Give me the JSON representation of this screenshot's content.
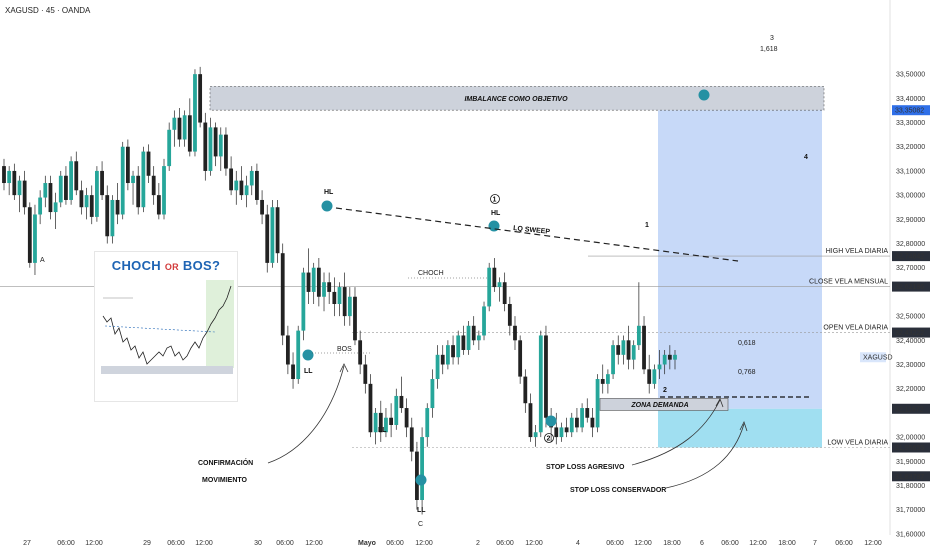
{
  "header": {
    "symbol": "XAGUSD · 45 · OANDA"
  },
  "colors": {
    "up": "#26a69a",
    "down": "#222222",
    "blue_zone": "#bdd2f7",
    "cyan_zone": "#8fd9ee",
    "marker": "#2591a3",
    "annotation_blue": "#1ea0c8"
  },
  "chart_data": {
    "type": "candlestick",
    "symbol": "XAGUSD",
    "timeframe": "45",
    "source": "OANDA",
    "ylim": [
      31.55,
      33.55
    ],
    "y_ticks": [
      "33,50000",
      "33,40000",
      "33,30000",
      "33,20000",
      "33,10000",
      "33,00000",
      "32,90000",
      "32,80000",
      "32,70000",
      "32,50000",
      "32,40000",
      "32,30000",
      "32,20000",
      "32,00000",
      "31,90000",
      "31,80000",
      "31,70000",
      "31,60000"
    ],
    "x_ticks": [
      "27",
      "06:00",
      "12:00",
      "29",
      "06:00",
      "12:00",
      "30",
      "06:00",
      "12:00",
      "Mayo",
      "06:00",
      "12:00",
      "2",
      "06:00",
      "12:00",
      "4",
      "06:00",
      "12:00",
      "18:00",
      "6",
      "06:00",
      "12:00",
      "18:00",
      "7",
      "06:00",
      "12:00"
    ],
    "candles": [
      [
        33.12,
        33.15,
        33.02,
        33.05
      ],
      [
        33.05,
        33.12,
        33.0,
        33.1
      ],
      [
        33.1,
        33.13,
        32.98,
        33.0
      ],
      [
        33.0,
        33.08,
        32.93,
        33.06
      ],
      [
        33.06,
        33.1,
        32.92,
        32.95
      ],
      [
        32.95,
        32.97,
        32.7,
        32.72
      ],
      [
        32.72,
        32.96,
        32.67,
        32.92
      ],
      [
        32.92,
        33.02,
        32.88,
        32.99
      ],
      [
        32.99,
        33.08,
        32.95,
        33.05
      ],
      [
        33.05,
        33.08,
        32.9,
        32.93
      ],
      [
        32.93,
        33.01,
        32.86,
        32.97
      ],
      [
        32.97,
        33.1,
        32.95,
        33.08
      ],
      [
        33.08,
        33.12,
        32.96,
        32.98
      ],
      [
        32.98,
        33.16,
        32.96,
        33.14
      ],
      [
        33.14,
        33.18,
        33.0,
        33.02
      ],
      [
        33.02,
        33.06,
        32.92,
        32.95
      ],
      [
        32.95,
        33.03,
        32.9,
        33.0
      ],
      [
        33.0,
        33.04,
        32.88,
        32.91
      ],
      [
        32.91,
        33.12,
        32.89,
        33.1
      ],
      [
        33.1,
        33.14,
        32.98,
        33.0
      ],
      [
        33.0,
        33.04,
        32.8,
        32.83
      ],
      [
        32.83,
        33.0,
        32.8,
        32.98
      ],
      [
        32.98,
        33.05,
        32.88,
        32.92
      ],
      [
        32.92,
        33.22,
        32.9,
        33.2
      ],
      [
        33.2,
        33.23,
        33.02,
        33.05
      ],
      [
        33.05,
        33.1,
        32.96,
        33.08
      ],
      [
        33.08,
        33.12,
        32.92,
        32.95
      ],
      [
        32.95,
        33.2,
        32.93,
        33.18
      ],
      [
        33.18,
        33.21,
        33.05,
        33.08
      ],
      [
        33.08,
        33.12,
        32.96,
        33.0
      ],
      [
        33.0,
        33.05,
        32.9,
        32.92
      ],
      [
        32.92,
        33.15,
        32.9,
        33.12
      ],
      [
        33.12,
        33.3,
        33.1,
        33.27
      ],
      [
        33.27,
        33.35,
        33.2,
        33.32
      ],
      [
        33.32,
        33.36,
        33.2,
        33.23
      ],
      [
        33.23,
        33.35,
        33.2,
        33.33
      ],
      [
        33.33,
        33.4,
        33.16,
        33.18
      ],
      [
        33.18,
        33.52,
        33.16,
        33.5
      ],
      [
        33.5,
        33.53,
        33.28,
        33.3
      ],
      [
        33.3,
        33.34,
        33.06,
        33.1
      ],
      [
        33.1,
        33.32,
        33.08,
        33.28
      ],
      [
        33.28,
        33.3,
        33.12,
        33.16
      ],
      [
        33.16,
        33.28,
        33.1,
        33.25
      ],
      [
        33.25,
        33.28,
        33.08,
        33.11
      ],
      [
        33.11,
        33.16,
        33.0,
        33.02
      ],
      [
        33.02,
        33.1,
        32.96,
        33.06
      ],
      [
        33.06,
        33.12,
        32.98,
        33.0
      ],
      [
        33.0,
        33.08,
        32.95,
        33.04
      ],
      [
        33.04,
        33.12,
        33.0,
        33.1
      ],
      [
        33.1,
        33.13,
        32.96,
        32.98
      ],
      [
        32.98,
        33.02,
        32.88,
        32.92
      ],
      [
        32.92,
        32.96,
        32.68,
        32.72
      ],
      [
        32.72,
        32.98,
        32.7,
        32.95
      ],
      [
        32.95,
        32.98,
        32.72,
        32.76
      ],
      [
        32.76,
        32.8,
        32.38,
        32.42
      ],
      [
        32.42,
        32.46,
        32.26,
        32.3
      ],
      [
        32.3,
        32.35,
        32.2,
        32.24
      ],
      [
        32.24,
        32.46,
        32.22,
        32.44
      ],
      [
        32.44,
        32.7,
        32.4,
        32.68
      ],
      [
        32.68,
        32.78,
        32.55,
        32.6
      ],
      [
        32.6,
        32.72,
        32.55,
        32.7
      ],
      [
        32.7,
        32.74,
        32.54,
        32.58
      ],
      [
        32.58,
        32.68,
        32.52,
        32.64
      ],
      [
        32.64,
        32.68,
        32.55,
        32.6
      ],
      [
        32.6,
        32.66,
        32.5,
        32.55
      ],
      [
        32.55,
        32.64,
        32.5,
        32.62
      ],
      [
        32.62,
        32.68,
        32.46,
        32.5
      ],
      [
        32.5,
        32.62,
        32.46,
        32.58
      ],
      [
        32.58,
        32.62,
        32.38,
        32.4
      ],
      [
        32.4,
        32.44,
        32.26,
        32.3
      ],
      [
        32.3,
        32.34,
        32.18,
        32.22
      ],
      [
        32.22,
        32.26,
        32.0,
        32.02
      ],
      [
        32.02,
        32.12,
        31.97,
        32.1
      ],
      [
        32.1,
        32.15,
        31.98,
        32.02
      ],
      [
        32.02,
        32.12,
        32.0,
        32.08
      ],
      [
        32.08,
        32.14,
        32.0,
        32.05
      ],
      [
        32.05,
        32.2,
        32.03,
        32.17
      ],
      [
        32.17,
        32.25,
        32.1,
        32.12
      ],
      [
        32.12,
        32.16,
        32.0,
        32.04
      ],
      [
        32.04,
        32.08,
        31.9,
        31.94
      ],
      [
        31.94,
        31.98,
        31.7,
        31.74
      ],
      [
        31.74,
        32.04,
        31.68,
        32.0
      ],
      [
        32.0,
        32.14,
        31.96,
        32.12
      ],
      [
        32.12,
        32.28,
        32.08,
        32.24
      ],
      [
        32.24,
        32.38,
        32.2,
        32.34
      ],
      [
        32.34,
        32.38,
        32.26,
        32.3
      ],
      [
        32.3,
        32.4,
        32.28,
        32.38
      ],
      [
        32.38,
        32.42,
        32.3,
        32.33
      ],
      [
        32.33,
        32.44,
        32.3,
        32.42
      ],
      [
        32.42,
        32.46,
        32.34,
        32.36
      ],
      [
        32.36,
        32.48,
        32.34,
        32.46
      ],
      [
        32.46,
        32.5,
        32.38,
        32.4
      ],
      [
        32.4,
        32.44,
        32.36,
        32.42
      ],
      [
        32.42,
        32.56,
        32.4,
        32.54
      ],
      [
        32.54,
        32.72,
        32.52,
        32.7
      ],
      [
        32.7,
        32.74,
        32.6,
        32.62
      ],
      [
        32.62,
        32.66,
        32.56,
        32.64
      ],
      [
        32.64,
        32.68,
        32.52,
        32.55
      ],
      [
        32.55,
        32.58,
        32.42,
        32.46
      ],
      [
        32.46,
        32.5,
        32.36,
        32.4
      ],
      [
        32.4,
        32.42,
        32.22,
        32.25
      ],
      [
        32.25,
        32.28,
        32.1,
        32.14
      ],
      [
        32.14,
        32.18,
        31.98,
        32.0
      ],
      [
        32.0,
        32.05,
        31.96,
        32.02
      ],
      [
        32.02,
        32.44,
        32.0,
        32.42
      ],
      [
        32.42,
        32.46,
        32.04,
        32.08
      ],
      [
        32.08,
        32.12,
        31.98,
        32.04
      ],
      [
        32.04,
        32.1,
        31.97,
        32.0
      ],
      [
        32.0,
        32.06,
        31.98,
        32.04
      ],
      [
        32.04,
        32.08,
        32.0,
        32.02
      ],
      [
        32.02,
        32.1,
        32.0,
        32.08
      ],
      [
        32.08,
        32.12,
        32.02,
        32.04
      ],
      [
        32.04,
        32.14,
        32.02,
        32.12
      ],
      [
        32.12,
        32.16,
        32.06,
        32.08
      ],
      [
        32.08,
        32.12,
        32.0,
        32.04
      ],
      [
        32.04,
        32.26,
        32.02,
        32.24
      ],
      [
        32.24,
        32.3,
        32.18,
        32.22
      ],
      [
        32.22,
        32.28,
        32.18,
        32.26
      ],
      [
        32.26,
        32.4,
        32.24,
        32.38
      ],
      [
        32.38,
        32.42,
        32.3,
        32.34
      ],
      [
        32.34,
        32.42,
        32.3,
        32.4
      ],
      [
        32.4,
        32.46,
        32.28,
        32.32
      ],
      [
        32.32,
        32.4,
        32.28,
        32.38
      ],
      [
        32.38,
        32.64,
        32.36,
        32.46
      ],
      [
        32.46,
        32.5,
        32.26,
        32.28
      ],
      [
        32.28,
        32.34,
        32.18,
        32.22
      ],
      [
        32.22,
        32.3,
        32.2,
        32.28
      ],
      [
        32.28,
        32.36,
        32.24,
        32.3
      ],
      [
        32.3,
        32.36,
        32.26,
        32.34
      ],
      [
        32.34,
        32.38,
        32.28,
        32.32
      ],
      [
        32.32,
        32.36,
        32.28,
        32.34
      ]
    ],
    "horizontal_levels": [
      {
        "label": "HIGH VELA DIARIA",
        "value": "32,74842",
        "y": 32.748
      },
      {
        "label": "CLOSE VELA MENSUAL",
        "value": "32,62186",
        "y": 32.622
      },
      {
        "label": "OPEN VELA DIARIA",
        "value": "32,43222",
        "y": 32.432
      },
      {
        "label": "LOW VELA DIARIA",
        "value": "31,95655",
        "y": 31.957
      }
    ],
    "price_tags": [
      {
        "value": "33,35082",
        "y": 33.351
      },
      {
        "value": "32,11672",
        "y": 32.117
      },
      {
        "value": "31,83787",
        "y": 31.838
      }
    ],
    "current_price_label": "XAGUSD",
    "fib_labels": [
      {
        "text": "3",
        "y": 33.43
      },
      {
        "text": "1,618",
        "y": 33.39
      },
      {
        "text": "4",
        "y": 32.97
      },
      {
        "text": "0,618",
        "y": 32.225
      },
      {
        "text": "0,768",
        "y": 32.145
      },
      {
        "text": "1",
        "y": 32.67
      },
      {
        "text": "2",
        "y": 32.07
      }
    ],
    "annotations": {
      "imbalance": "IMBALANCE COMO OBJETIVO",
      "hl": "HL",
      "hl2": "HL",
      "lq_sweep": "LQ SWEEP",
      "choch": "CHOCH",
      "bos": "BOS",
      "ll1": "LL",
      "ll2": "LL",
      "ll3": "LL",
      "zona": "ZONA DEMANDA",
      "confirmacion": "CONFIRMACIÓN",
      "movimiento": "MOVIMIENTO",
      "sl_agresivo": "STOP LOSS AGRESIVO",
      "sl_conservador": "STOP LOSS CONSERVADOR",
      "circle1": "1",
      "circle2": "2",
      "a": "A",
      "c": "C"
    }
  },
  "inset": {
    "title_a": "CHOCH",
    "title_or": "OR",
    "title_b": "BOS?"
  }
}
